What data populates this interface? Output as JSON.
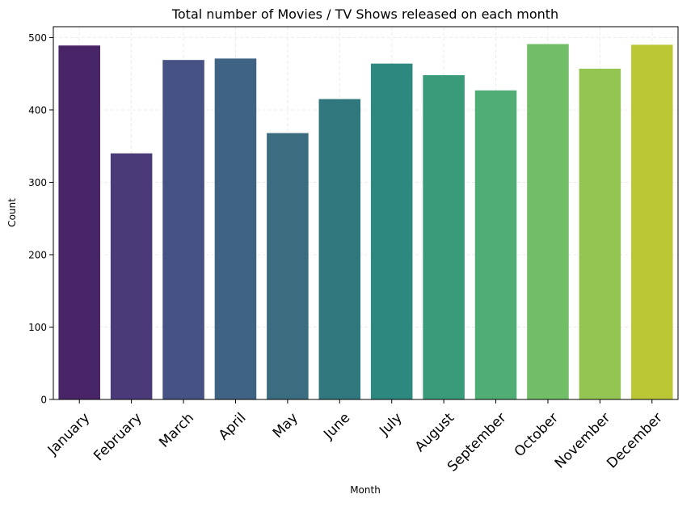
{
  "chart_data": {
    "type": "bar",
    "title": "Total number of Movies / TV Shows released on each month",
    "xlabel": "Month",
    "ylabel": "Count",
    "categories": [
      "January",
      "February",
      "March",
      "April",
      "May",
      "June",
      "July",
      "August",
      "September",
      "October",
      "November",
      "December"
    ],
    "values": [
      489,
      340,
      469,
      471,
      368,
      415,
      464,
      448,
      427,
      491,
      457,
      490
    ],
    "ylim": [
      0,
      515
    ],
    "yticks": [
      0,
      100,
      200,
      300,
      400,
      500
    ],
    "grid": true,
    "colors": [
      "#472567",
      "#4a3b78",
      "#465284",
      "#3e6383",
      "#3b6c80",
      "#30787e",
      "#2d8980",
      "#3a9b7a",
      "#50ad73",
      "#72bd67",
      "#94c451",
      "#bbc734"
    ]
  }
}
